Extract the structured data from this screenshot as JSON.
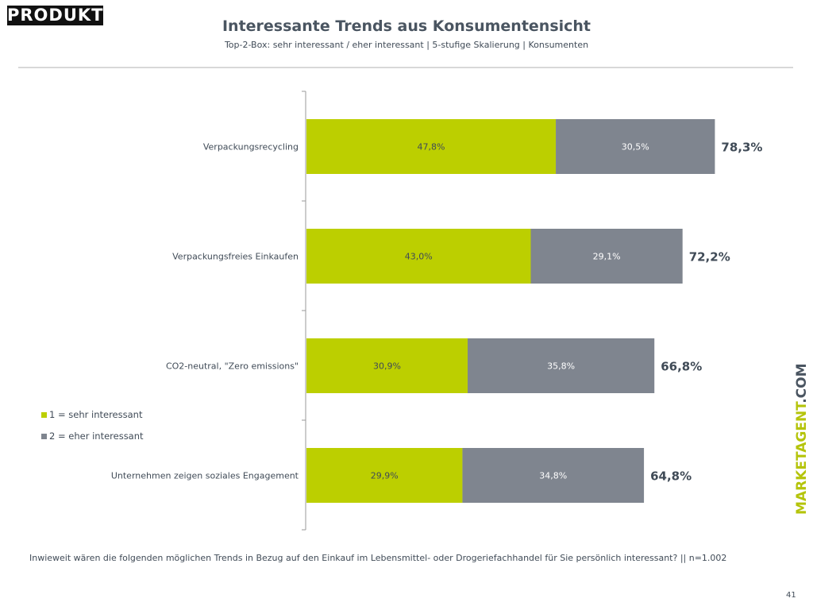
{
  "logo": "PRODUKT",
  "header": {
    "title": "Interessante Trends aus Konsumentensicht",
    "subtitle": "Top-2-Box: sehr interessant / eher interessant | 5-stufige Skalierung | Konsumenten"
  },
  "chart_data": {
    "type": "bar",
    "orientation": "horizontal-stacked",
    "categories": [
      "Verpackungsrecycling",
      "Verpackungsfreies Einkaufen",
      "CO2-neutral, \"Zero emissions\"",
      "Unternehmen zeigen soziales Engagement"
    ],
    "series": [
      {
        "name": "1 = sehr interessant",
        "color": "#bccf00",
        "values": [
          47.8,
          43.0,
          30.9,
          29.9
        ],
        "labels": [
          "47,8%",
          "43,0%",
          "30,9%",
          "29,9%"
        ]
      },
      {
        "name": "2 = eher interessant",
        "color": "#7f858f",
        "values": [
          30.5,
          29.1,
          35.8,
          34.8
        ],
        "labels": [
          "30,5%",
          "29,1%",
          "35,8%",
          "34,8%"
        ]
      }
    ],
    "totals": [
      "78,3%",
      "72,2%",
      "66,8%",
      "64,8%"
    ],
    "legend": "left",
    "grid": false
  },
  "footer": {
    "question": "Inwieweit wären die folgenden möglichen Trends in Bezug auf den Einkauf im Lebensmittel- oder Drogeriefachhandel für Sie persönlich interessant? || n=1.002",
    "brand_main": "MARKETAGENT",
    "brand_suffix": ".COM",
    "page": "41"
  }
}
